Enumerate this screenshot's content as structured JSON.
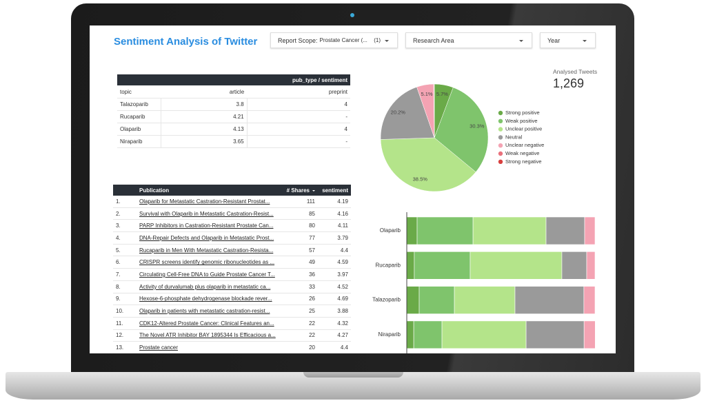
{
  "header": {
    "title": "Sentiment Analysis of Twitter"
  },
  "filters": [
    {
      "label": "Report Scope:",
      "value": "Prostate Cancer (...",
      "count": "(1)"
    },
    {
      "label": "Research Area"
    },
    {
      "label": "Year"
    }
  ],
  "scorecard": {
    "label": "Analysed Tweets",
    "value": "1,269"
  },
  "pivot_table": {
    "title": "pub_type / sentiment",
    "columns": [
      "topic",
      "article",
      "preprint"
    ],
    "rows": [
      [
        "Talazoparib",
        "3.8",
        "4"
      ],
      [
        "Rucaparib",
        "4.21",
        "-"
      ],
      [
        "Olaparib",
        "4.13",
        "4"
      ],
      [
        "Niraparib",
        "3.65",
        "-"
      ]
    ]
  },
  "pub_table": {
    "columns": [
      "Publication",
      "# Shares",
      "sentiment"
    ],
    "rows": [
      [
        "1.",
        "Olaparib for Metastatic Castration-Resistant Prostat...",
        "111",
        "4.19"
      ],
      [
        "2.",
        "Survival with Olaparib in Metastatic Castration-Resist...",
        "85",
        "4.16"
      ],
      [
        "3.",
        "PARP Inhibitors in Castration-Resistant Prostate Can...",
        "80",
        "4.11"
      ],
      [
        "4.",
        "DNA-Repair Defects and Olaparib in Metastatic Prost...",
        "77",
        "3.79"
      ],
      [
        "5.",
        "Rucaparib in Men With Metastatic Castration-Resista...",
        "57",
        "4.4"
      ],
      [
        "6.",
        "CRISPR screens identify genomic ribonucleotides as ...",
        "49",
        "4.59"
      ],
      [
        "7.",
        "Circulating Cell-Free DNA to Guide Prostate Cancer T...",
        "36",
        "3.97"
      ],
      [
        "8.",
        "Activity of durvalumab plus olaparib in metastatic ca...",
        "33",
        "4.52"
      ],
      [
        "9.",
        "Hexose-6-phosphate dehydrogenase blockade rever...",
        "26",
        "4.69"
      ],
      [
        "10.",
        "Olaparib in patients with metastatic castration-resist...",
        "25",
        "3.88"
      ],
      [
        "11.",
        "CDK12-Altered Prostate Cancer: Clinical Features an...",
        "22",
        "4.32"
      ],
      [
        "12.",
        "The Novel ATR Inhibitor BAY 1895344 Is Efficacious a...",
        "22",
        "4.27"
      ],
      [
        "13.",
        "Prostate cancer",
        "20",
        "4.4"
      ]
    ]
  },
  "chart_data": [
    {
      "type": "pie",
      "categories": [
        "Strong positive",
        "Weak positive",
        "Unclear positive",
        "Neutral",
        "Unclear negative",
        "Weak negative",
        "Strong negative"
      ],
      "values": [
        5.7,
        30.3,
        38.5,
        20.2,
        5.1,
        0.1,
        0.1
      ],
      "value_labels": [
        "5.7%",
        "30.3%",
        "38.5%",
        "20.2%",
        "5.1%",
        null,
        null
      ],
      "colors": [
        "#6aaa48",
        "#7fc46c",
        "#b4e48a",
        "#9a9a9a",
        "#f4a3b3",
        "#e9717c",
        "#d8403f"
      ],
      "legend": "right"
    },
    {
      "type": "bar",
      "orientation": "horizontal",
      "stacked": true,
      "categories": [
        "Olaparib",
        "Rucaparib",
        "Talazoparib",
        "Niraparib"
      ],
      "xlim": [
        0,
        100
      ],
      "series": [
        {
          "color": "#6aaa48",
          "values": [
            5.5,
            4,
            6.6,
            3.7
          ]
        },
        {
          "color": "#7fc46c",
          "values": [
            29.7,
            29.7,
            18.7,
            15
          ]
        },
        {
          "color": "#b4e48a",
          "values": [
            38.8,
            48.7,
            32.2,
            44.7
          ]
        },
        {
          "color": "#9a9a9a",
          "values": [
            20.5,
            13.2,
            36.6,
            30.8
          ]
        },
        {
          "color": "#f4a3b3",
          "values": [
            5.5,
            4.4,
            5.9,
            5.9
          ]
        }
      ]
    }
  ]
}
